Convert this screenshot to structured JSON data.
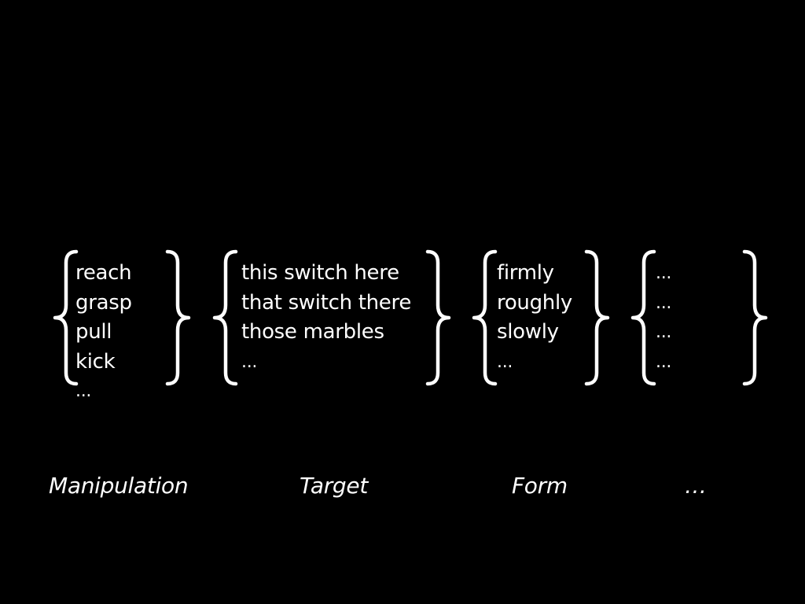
{
  "colors": {
    "background": "#000000",
    "foreground": "#ffffff"
  },
  "groups": [
    {
      "items": [
        "reach",
        "grasp",
        "pull",
        "kick",
        "..."
      ],
      "caption": "Manipulation"
    },
    {
      "items": [
        "this switch here",
        "that switch there",
        "those marbles",
        "..."
      ],
      "caption": "Target"
    },
    {
      "items": [
        "firmly",
        "roughly",
        "slowly",
        "..."
      ],
      "caption": "Form"
    },
    {
      "items": [
        "...",
        "...",
        "...",
        "..."
      ],
      "caption": "…"
    }
  ]
}
